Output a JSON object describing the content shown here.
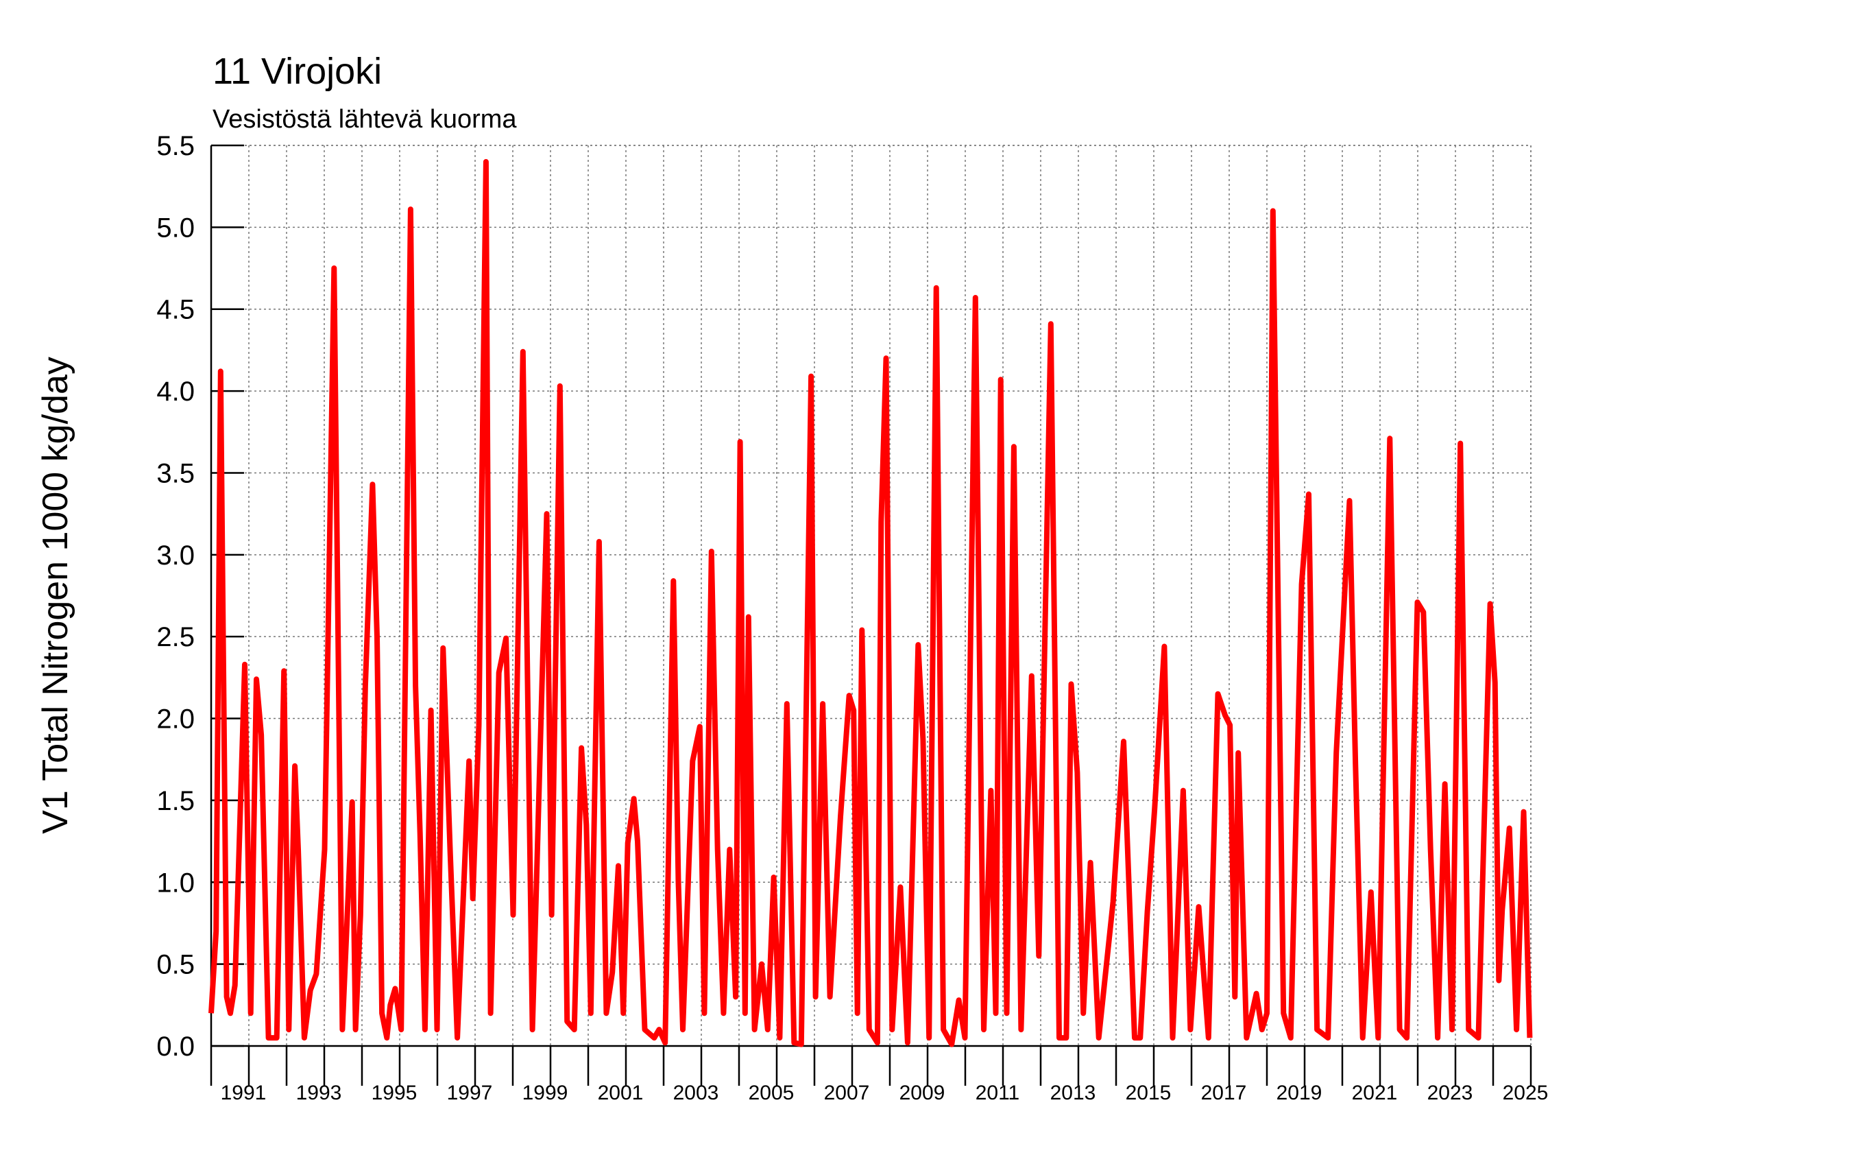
{
  "chart_data": {
    "type": "line",
    "title": "11 Virojoki",
    "subtitle": "Vesistöstä lähtevä kuorma",
    "y_label": "V1 Total Nitrogen 1000 kg/day",
    "color": "#ff0000",
    "grid": true,
    "xlim": [
      1990,
      2025
    ],
    "xticks": [
      1991,
      1993,
      1995,
      1997,
      1999,
      2001,
      2003,
      2005,
      2007,
      2009,
      2011,
      2013,
      2015,
      2017,
      2019,
      2021,
      2023,
      2025
    ],
    "xminorticks": [
      1990,
      1992,
      1994,
      1996,
      1998,
      2000,
      2002,
      2004,
      2006,
      2008,
      2010,
      2012,
      2014,
      2016,
      2018,
      2020,
      2022,
      2024
    ],
    "ylim": [
      0,
      5.5
    ],
    "yticks": [
      {
        "value": 0,
        "label": "0.0"
      },
      0.5,
      {
        "value": 1,
        "label": "1.0"
      },
      1.5,
      {
        "value": 2,
        "label": "2.0"
      },
      2.5,
      {
        "value": 3,
        "label": "3.0"
      },
      3.5,
      {
        "value": 4,
        "label": "4.0"
      },
      4.5,
      {
        "value": 5,
        "label": "5.0"
      },
      5.5
    ],
    "x": [
      1990.0,
      1990.13,
      1990.25,
      1990.41,
      1990.51,
      1990.63,
      1990.89,
      1991.05,
      1991.2,
      1991.33,
      1991.52,
      1991.74,
      1991.93,
      1992.06,
      1992.22,
      1992.31,
      1992.47,
      1992.63,
      1992.79,
      1993.01,
      1993.26,
      1993.48,
      1993.74,
      1993.83,
      1993.96,
      1994.09,
      1994.28,
      1994.4,
      1994.53,
      1994.66,
      1994.75,
      1994.88,
      1995.04,
      1995.29,
      1995.42,
      1995.54,
      1995.67,
      1995.83,
      1995.99,
      1996.15,
      1996.34,
      1996.53,
      1996.84,
      1996.94,
      1997.1,
      1997.29,
      1997.41,
      1997.63,
      1997.82,
      1998.01,
      1998.27,
      1998.52,
      1998.9,
      1999.03,
      1999.25,
      1999.44,
      1999.63,
      1999.82,
      1999.95,
      2000.07,
      2000.29,
      2000.48,
      2000.64,
      2000.8,
      2000.93,
      2001.05,
      2001.21,
      2001.31,
      2001.5,
      2001.75,
      2001.88,
      2002.04,
      2002.26,
      2002.39,
      2002.51,
      2002.77,
      2002.96,
      2003.08,
      2003.27,
      2003.43,
      2003.59,
      2003.75,
      2003.91,
      2004.03,
      2004.16,
      2004.25,
      2004.41,
      2004.6,
      2004.76,
      2004.92,
      2005.08,
      2005.27,
      2005.46,
      2005.65,
      2005.91,
      2006.03,
      2006.22,
      2006.41,
      2006.69,
      2006.92,
      2007.04,
      2007.14,
      2007.26,
      2007.45,
      2007.67,
      2007.77,
      2007.9,
      2008.06,
      2008.28,
      2008.47,
      2008.75,
      2008.88,
      2009.04,
      2009.23,
      2009.42,
      2009.64,
      2009.83,
      2009.99,
      2010.27,
      2010.49,
      2010.68,
      2010.81,
      2010.94,
      2011.1,
      2011.29,
      2011.48,
      2011.76,
      2011.95,
      2012.27,
      2012.49,
      2012.68,
      2012.81,
      2012.97,
      2013.13,
      2013.32,
      2013.54,
      2013.92,
      2014.2,
      2014.49,
      2014.64,
      2014.83,
      2015.02,
      2015.28,
      2015.5,
      2015.78,
      2015.97,
      2016.19,
      2016.45,
      2016.7,
      2016.89,
      2017.02,
      2017.15,
      2017.24,
      2017.46,
      2017.72,
      2017.87,
      2018.0,
      2018.16,
      2018.44,
      2018.63,
      2018.92,
      2019.11,
      2019.33,
      2019.62,
      2019.84,
      2020.19,
      2020.35,
      2020.54,
      2020.76,
      2020.95,
      2021.26,
      2021.52,
      2021.71,
      2021.99,
      2022.15,
      2022.34,
      2022.53,
      2022.72,
      2022.91,
      2023.13,
      2023.35,
      2023.61,
      2023.92,
      2024.05,
      2024.15,
      2024.24,
      2024.43,
      2024.62,
      2024.81,
      2024.97
    ],
    "values": [
      0.2,
      0.7,
      4.12,
      0.3,
      0.2,
      0.37,
      2.33,
      0.2,
      2.24,
      1.9,
      0.05,
      0.05,
      2.29,
      0.1,
      1.71,
      1.2,
      0.05,
      0.34,
      0.44,
      1.2,
      4.75,
      0.1,
      1.49,
      0.1,
      0.8,
      2.2,
      3.43,
      2.5,
      0.2,
      0.05,
      0.25,
      0.35,
      0.1,
      5.11,
      2.2,
      1.3,
      0.1,
      2.05,
      0.1,
      2.43,
      1.18,
      0.05,
      1.74,
      0.9,
      1.96,
      5.4,
      0.2,
      2.28,
      2.49,
      0.8,
      4.24,
      0.1,
      3.25,
      0.8,
      4.03,
      0.15,
      0.1,
      1.82,
      1.35,
      0.2,
      3.08,
      0.2,
      0.45,
      1.1,
      0.2,
      1.24,
      1.51,
      1.25,
      0.1,
      0.05,
      0.1,
      0.02,
      2.84,
      1.0,
      0.1,
      1.74,
      1.95,
      0.2,
      3.02,
      1.2,
      0.2,
      1.2,
      0.3,
      3.69,
      0.2,
      2.62,
      0.1,
      0.5,
      0.1,
      1.03,
      0.05,
      2.09,
      0.02,
      0.01,
      4.09,
      0.3,
      2.09,
      0.3,
      1.4,
      2.14,
      2.05,
      0.2,
      2.54,
      0.1,
      0.02,
      3.2,
      4.2,
      0.1,
      0.97,
      0.02,
      2.45,
      1.87,
      0.05,
      4.63,
      0.1,
      0.01,
      0.28,
      0.05,
      4.57,
      0.1,
      1.56,
      0.2,
      4.07,
      0.2,
      3.66,
      0.1,
      2.26,
      0.55,
      4.41,
      0.05,
      0.05,
      2.21,
      1.67,
      0.2,
      1.12,
      0.05,
      0.88,
      1.86,
      0.05,
      0.05,
      0.82,
      1.44,
      2.44,
      0.05,
      1.56,
      0.1,
      0.85,
      0.05,
      2.15,
      2.02,
      1.96,
      0.3,
      1.79,
      0.05,
      0.32,
      0.1,
      0.2,
      5.1,
      0.2,
      0.05,
      2.82,
      3.37,
      0.1,
      0.05,
      1.79,
      3.33,
      1.72,
      0.05,
      0.94,
      0.05,
      3.71,
      0.1,
      0.05,
      2.71,
      2.65,
      1.2,
      0.05,
      1.6,
      0.1,
      3.68,
      0.1,
      0.05,
      2.7,
      2.22,
      0.4,
      0.83,
      1.33,
      0.1,
      1.43,
      0.05
    ]
  }
}
